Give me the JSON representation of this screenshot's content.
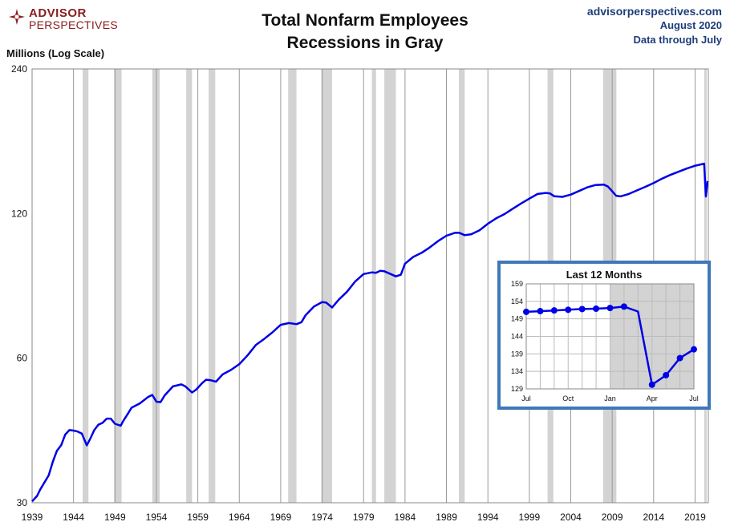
{
  "header": {
    "logo_line1": "ADVISOR",
    "logo_line2": "PERSPECTIVES",
    "logo_icon": "compass-rose-icon",
    "title_line1": "Total Nonfarm Employees",
    "title_line2": "Recessions in Gray",
    "source_line1": "advisorperspectives.com",
    "source_line2": "August 2020",
    "source_line3": "Data through July"
  },
  "colors": {
    "line": "#0000e6",
    "recession": "#d3d3d3",
    "grid": "#999999",
    "inset_border": "#3f78b8",
    "brand": "#8b1c1c",
    "source_text": "#1f3d7a"
  },
  "chart_data": [
    {
      "type": "line",
      "title": "Total Nonfarm Employees",
      "subtitle": "Recessions in Gray",
      "ylabel": "Millions (Log Scale)",
      "yscale": "log",
      "ylim": [
        30,
        240
      ],
      "yticks": [
        30,
        60,
        120,
        240
      ],
      "xlim": [
        1939,
        2020.6
      ],
      "xticks": [
        1939,
        1944,
        1949,
        1954,
        1959,
        1964,
        1969,
        1974,
        1979,
        1984,
        1989,
        1994,
        1999,
        2004,
        2009,
        2014,
        2019
      ],
      "grid": "vertical",
      "recessions": [
        [
          1945.1,
          1945.8
        ],
        [
          1948.9,
          1949.8
        ],
        [
          1953.5,
          1954.4
        ],
        [
          1957.6,
          1958.3
        ],
        [
          1960.3,
          1961.1
        ],
        [
          1969.9,
          1970.9
        ],
        [
          1973.9,
          1975.2
        ],
        [
          1980.0,
          1980.5
        ],
        [
          1981.5,
          1982.9
        ],
        [
          1990.5,
          1991.2
        ],
        [
          2001.2,
          2001.9
        ],
        [
          2007.9,
          2009.5
        ],
        [
          2020.1,
          2020.4
        ]
      ],
      "series": [
        {
          "x": [
            1939.0,
            1939.6,
            1940.0,
            1941.0,
            1941.5,
            1942.0,
            1942.5,
            1943.0,
            1943.5,
            1944.0,
            1944.5,
            1945.0,
            1945.6,
            1946.0,
            1946.5,
            1947.0,
            1947.5,
            1948.0,
            1948.5,
            1949.0,
            1949.7,
            1950.0,
            1950.5,
            1951.0,
            1952.0,
            1953.0,
            1953.5,
            1954.0,
            1954.5,
            1955.0,
            1956.0,
            1957.0,
            1957.5,
            1958.3,
            1958.8,
            1959.5,
            1960.0,
            1960.5,
            1961.2,
            1962.0,
            1963.0,
            1964.0,
            1965.0,
            1966.0,
            1967.0,
            1968.0,
            1969.0,
            1970.0,
            1970.9,
            1971.5,
            1972.0,
            1973.0,
            1974.0,
            1974.5,
            1975.2,
            1976.0,
            1977.0,
            1978.0,
            1979.0,
            1980.0,
            1980.5,
            1981.0,
            1981.5,
            1982.9,
            1983.5,
            1984.0,
            1985.0,
            1986.0,
            1987.0,
            1988.0,
            1989.0,
            1990.0,
            1990.5,
            1991.2,
            1992.0,
            1993.0,
            1994.0,
            1995.0,
            1996.0,
            1997.0,
            1998.0,
            1999.0,
            2000.0,
            2001.0,
            2001.5,
            2002.0,
            2003.0,
            2004.0,
            2005.0,
            2006.0,
            2007.0,
            2008.0,
            2008.5,
            2009.5,
            2010.0,
            2011.0,
            2012.0,
            2013.0,
            2014.0,
            2015.0,
            2016.0,
            2017.0,
            2018.0,
            2019.0,
            2020.1,
            2020.3,
            2020.5
          ],
          "values": [
            30.2,
            31.0,
            32.0,
            34.2,
            36.5,
            38.5,
            39.5,
            41.6,
            42.5,
            42.4,
            42.2,
            41.8,
            39.5,
            40.7,
            42.5,
            43.6,
            44.0,
            44.9,
            44.9,
            43.8,
            43.4,
            44.4,
            45.8,
            47.3,
            48.3,
            49.8,
            50.3,
            48.7,
            48.6,
            50.2,
            52.4,
            52.9,
            52.4,
            50.9,
            51.6,
            53.2,
            54.1,
            54.0,
            53.6,
            55.5,
            56.7,
            58.3,
            60.8,
            63.9,
            65.8,
            67.9,
            70.4,
            71.0,
            70.6,
            71.3,
            73.7,
            76.8,
            78.5,
            78.3,
            76.5,
            79.4,
            82.5,
            86.7,
            89.8,
            90.5,
            90.3,
            91.2,
            91.0,
            88.8,
            89.5,
            94.4,
            97.5,
            99.4,
            102.1,
            105.2,
            107.9,
            109.4,
            109.5,
            108.2,
            108.7,
            110.8,
            114.3,
            117.3,
            119.7,
            122.8,
            125.9,
            128.9,
            131.8,
            132.5,
            132.1,
            130.4,
            130.0,
            131.4,
            133.7,
            136.1,
            137.6,
            137.9,
            136.5,
            130.6,
            130.3,
            131.8,
            134.1,
            136.4,
            138.9,
            141.8,
            144.4,
            146.6,
            148.9,
            150.9,
            152.4,
            130.2,
            140.3
          ]
        }
      ]
    },
    {
      "type": "line",
      "title": "Last 12 Months",
      "yscale": "linear",
      "ylim": [
        129,
        159
      ],
      "yticks": [
        129,
        134,
        139,
        144,
        149,
        154,
        159
      ],
      "xticklabels": [
        "Jul",
        "Oct",
        "Jan",
        "Apr",
        "Jul"
      ],
      "recession_shade": [
        6,
        12
      ],
      "series": [
        {
          "x": [
            0,
            1,
            2,
            3,
            4,
            5,
            6,
            7,
            8,
            9,
            10,
            11,
            12
          ],
          "values": [
            151.0,
            151.2,
            151.4,
            151.6,
            151.8,
            151.9,
            152.1,
            152.5,
            151.1,
            130.2,
            132.9,
            137.8,
            140.3
          ]
        }
      ]
    }
  ]
}
